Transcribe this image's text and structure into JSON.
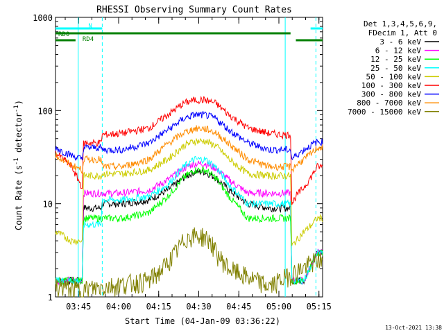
{
  "chart_data": {
    "type": "line",
    "title": "RHESSI Observing Summary Count Rates",
    "ylabel_main": "Count Rate (s",
    "ylabel_sup1": "-1",
    "ylabel_mid": " detector",
    "ylabel_sup2": "-1",
    "ylabel_end": ")",
    "xlabel": "Start Time (04-Jan-09 03:36:22)",
    "yscale": "log",
    "ylim": [
      1,
      1000
    ],
    "xlim_minutes": [
      0,
      100
    ],
    "y_ticks": [
      {
        "value": 1,
        "label": "1"
      },
      {
        "value": 10,
        "label": "10"
      },
      {
        "value": 100,
        "label": "100"
      },
      {
        "value": 1000,
        "label": "1000"
      }
    ],
    "x_ticks": [
      {
        "minute": 8.633,
        "label": "03:45"
      },
      {
        "minute": 23.633,
        "label": "04:00"
      },
      {
        "minute": 38.633,
        "label": "04:15"
      },
      {
        "minute": 53.633,
        "label": "04:30"
      },
      {
        "minute": 68.633,
        "label": "04:45"
      },
      {
        "minute": 83.633,
        "label": "05:00"
      },
      {
        "minute": 98.633,
        "label": "05:15"
      }
    ],
    "legend": {
      "header1": "Det 1,3,4,5,6,9,",
      "header2": "FDecim 1, Att 0",
      "placement": "right"
    },
    "series": [
      {
        "name": "3 - 6 keV",
        "color": "#000000",
        "x": [
          0,
          10,
          10.5,
          17,
          17.5,
          25,
          35,
          42,
          48,
          52,
          56,
          60,
          65,
          72,
          80,
          85,
          88,
          88.5,
          93,
          98
        ],
        "y": [
          1.5,
          1.5,
          9,
          9,
          10,
          10,
          11,
          14,
          19,
          22,
          22,
          19,
          14,
          10,
          9,
          9,
          9,
          1.5,
          1.5,
          3
        ]
      },
      {
        "name": "6 - 12 keV",
        "color": "#ff00ff",
        "x": [
          0,
          10,
          10.5,
          17,
          17.5,
          25,
          35,
          42,
          48,
          52,
          56,
          60,
          65,
          72,
          80,
          85,
          88,
          88.5,
          93,
          98
        ],
        "y": [
          1.5,
          1.5,
          13,
          13,
          13,
          13,
          14,
          18,
          24,
          27,
          27,
          24,
          18,
          13,
          13,
          13,
          13,
          1.5,
          1.5,
          3
        ]
      },
      {
        "name": "12 - 25 keV",
        "color": "#00ff00",
        "x": [
          0,
          10,
          10.5,
          17,
          17.5,
          25,
          35,
          42,
          48,
          52,
          56,
          60,
          65,
          72,
          80,
          85,
          88,
          88.5,
          93,
          98
        ],
        "y": [
          1.5,
          1.5,
          7,
          7,
          7,
          7,
          8,
          12,
          19,
          23,
          23,
          19,
          12,
          7,
          7,
          7,
          7,
          1.5,
          1.5,
          3
        ]
      },
      {
        "name": "25 - 50 keV",
        "color": "#00ffff",
        "x": [
          0,
          10,
          10.5,
          17,
          17.5,
          25,
          35,
          42,
          48,
          52,
          56,
          60,
          65,
          72,
          80,
          85,
          88,
          88.5,
          93,
          98
        ],
        "y": [
          1.5,
          1.5,
          6,
          6,
          11,
          11,
          12,
          16,
          25,
          30,
          30,
          25,
          16,
          10,
          10,
          10,
          10,
          1.5,
          1.5,
          3
        ]
      },
      {
        "name": "50 - 100 keV",
        "color": "#cccc00",
        "x": [
          0,
          3,
          6,
          10,
          10.5,
          17,
          17.5,
          25,
          35,
          42,
          48,
          52,
          56,
          60,
          65,
          72,
          80,
          85,
          88,
          88.5,
          90,
          93,
          96,
          98
        ],
        "y": [
          5,
          4.5,
          4,
          4,
          20,
          20,
          21,
          21,
          23,
          30,
          42,
          47,
          47,
          42,
          30,
          21,
          20,
          20,
          20,
          3.5,
          4,
          5,
          6,
          7
        ]
      },
      {
        "name": "100 - 300 keV",
        "color": "#ff0000",
        "x": [
          0,
          3,
          6,
          10,
          10.5,
          17,
          17.5,
          25,
          35,
          42,
          48,
          52,
          56,
          60,
          65,
          72,
          80,
          85,
          88,
          88.5,
          90,
          93,
          96,
          98
        ],
        "y": [
          35,
          30,
          25,
          15,
          45,
          45,
          55,
          57,
          65,
          90,
          120,
          130,
          130,
          120,
          90,
          65,
          57,
          55,
          55,
          10,
          12,
          15,
          20,
          25
        ]
      },
      {
        "name": "300 - 800 keV",
        "color": "#0000ff",
        "x": [
          0,
          3,
          6,
          10,
          10.5,
          17,
          17.5,
          25,
          35,
          42,
          48,
          52,
          56,
          60,
          65,
          72,
          80,
          85,
          88,
          88.5,
          90,
          93,
          96,
          98
        ],
        "y": [
          40,
          36,
          33,
          30,
          40,
          40,
          38,
          38,
          45,
          62,
          82,
          90,
          90,
          82,
          62,
          45,
          38,
          38,
          38,
          30,
          33,
          38,
          43,
          46
        ]
      },
      {
        "name": "800 - 7000 keV",
        "color": "#ff8c00",
        "x": [
          0,
          3,
          6,
          10,
          10.5,
          17,
          17.5,
          25,
          35,
          42,
          48,
          52,
          56,
          60,
          65,
          72,
          80,
          85,
          88,
          88.5,
          90,
          93,
          96,
          98
        ],
        "y": [
          33,
          29,
          26,
          23,
          30,
          30,
          25,
          25,
          30,
          44,
          58,
          64,
          64,
          58,
          44,
          30,
          25,
          25,
          25,
          23,
          26,
          30,
          35,
          40
        ]
      },
      {
        "name": "7000 - 15000 keV",
        "color": "#808000",
        "x": [
          0,
          3,
          6,
          10,
          35,
          40,
          45,
          48,
          50,
          55,
          58,
          60,
          65,
          80,
          98
        ],
        "y": [
          1.3,
          1.3,
          1.2,
          1.2,
          1.5,
          2,
          3,
          4,
          4.5,
          4.5,
          4,
          3,
          2,
          1.3,
          2.5
        ]
      }
    ],
    "event_bars": [
      {
        "label": "N",
        "color": "#00ffff",
        "x0": 0,
        "x1": 17.5,
        "level": "top"
      },
      {
        "label": "",
        "color": "#00ffff",
        "x0": 95.5,
        "x1": 100,
        "level": "top"
      },
      {
        "label": "RD0",
        "color": "#008000",
        "x0": 0,
        "x1": 88,
        "level": "middle"
      },
      {
        "label": "RD4",
        "color": "#008000",
        "x0": 0,
        "x1": 7.5,
        "level": "lower"
      },
      {
        "label": "",
        "color": "#008000",
        "x0": 90,
        "x1": 100,
        "level": "lower"
      }
    ],
    "vlines_cyan_minutes": [
      8.5,
      17.5,
      86,
      97.5
    ],
    "footer_timestamp": "13-Oct-2021 13:38"
  }
}
